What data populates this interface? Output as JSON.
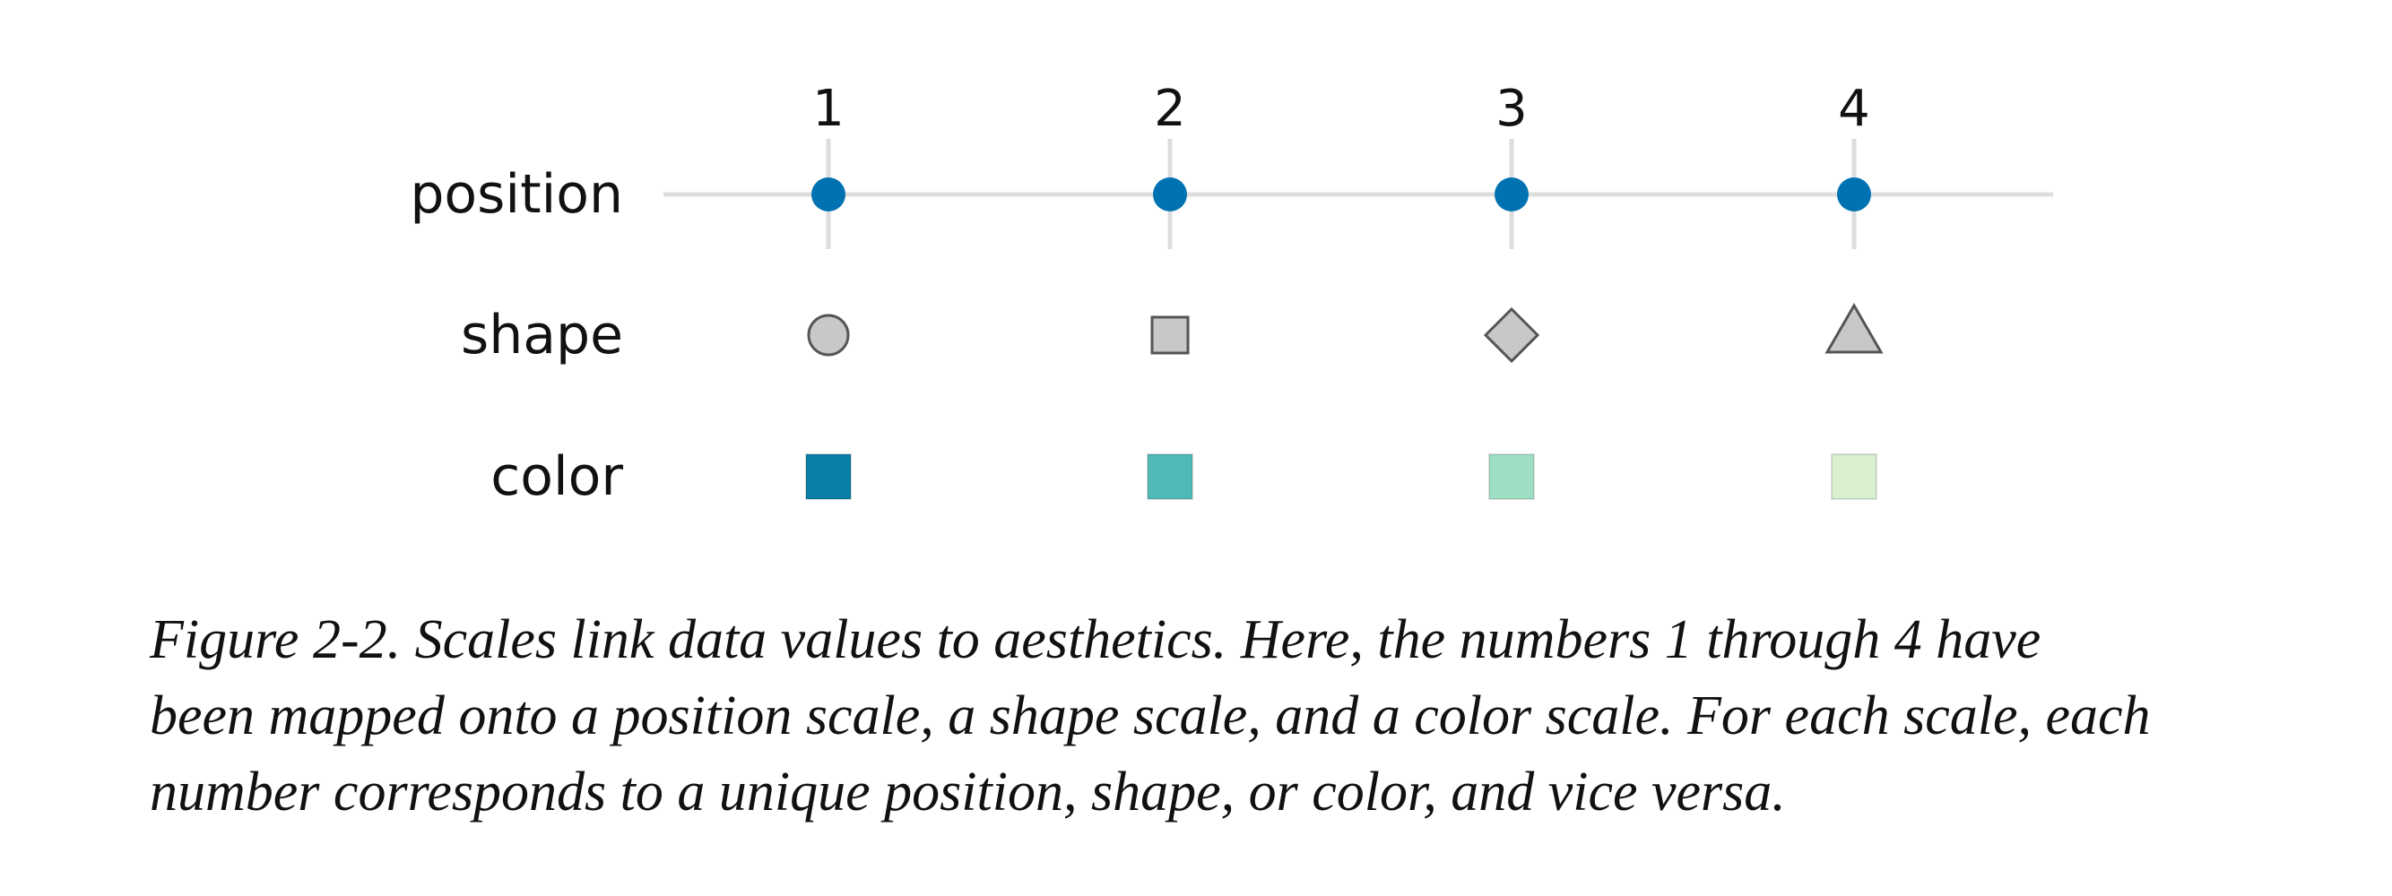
{
  "figure": {
    "tick_labels": [
      "1",
      "2",
      "3",
      "4"
    ],
    "rows": [
      {
        "label": "position",
        "kind": "position"
      },
      {
        "label": "shape",
        "kind": "shape"
      },
      {
        "label": "color",
        "kind": "color"
      }
    ],
    "position": {
      "point_color": "#0072b2",
      "axis_color": "#dddddd"
    },
    "shapes": [
      {
        "value": "1",
        "shape": "circle"
      },
      {
        "value": "2",
        "shape": "square"
      },
      {
        "value": "3",
        "shape": "diamond"
      },
      {
        "value": "4",
        "shape": "triangle"
      }
    ],
    "shape_fill": "#c8c8c8",
    "shape_stroke": "#555555",
    "colors": [
      {
        "value": "1",
        "hex": "#0a7fa8"
      },
      {
        "value": "2",
        "hex": "#4fb9b7"
      },
      {
        "value": "3",
        "hex": "#9edec3"
      },
      {
        "value": "4",
        "hex": "#d8efd0"
      }
    ]
  },
  "caption": {
    "lines": [
      "Figure 2-2. Scales link data values to aesthetics. Here, the numbers 1 through 4 have",
      "been mapped onto a position scale, a shape scale, and a color scale. For each scale, each",
      "number corresponds to a unique position, shape, or color, and vice versa."
    ]
  }
}
